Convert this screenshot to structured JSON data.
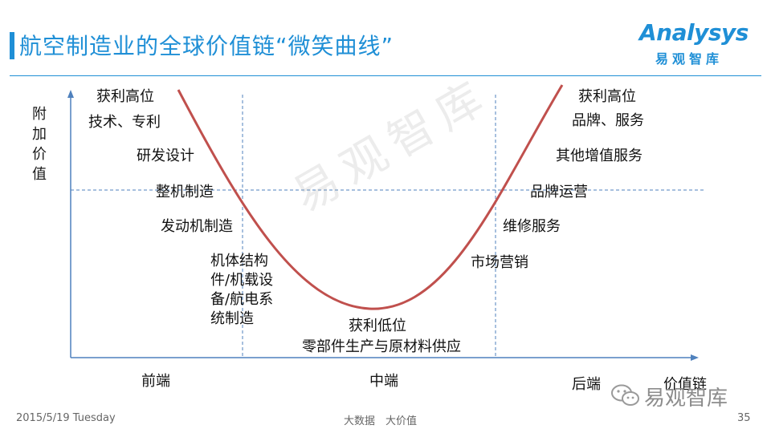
{
  "slide": {
    "title": "航空制造业的全球价值链“微笑曲线”",
    "logo_en": "Analysys",
    "logo_cn": "易观智库"
  },
  "diagram": {
    "y_axis_label": "附加价值",
    "x_axis_label": "价值链",
    "x_sections": [
      "前端",
      "中端",
      "后端"
    ],
    "left_labels": [
      "获利高位",
      "技术、专利",
      "研发设计",
      "整机制造",
      "发动机制造",
      "机体结构件/机载设备/航电系统制造"
    ],
    "bottom_labels": [
      "获利低位",
      "零部件生产与原材料供应"
    ],
    "right_labels": [
      "获利高位",
      "品牌、服务",
      "其他增值服务",
      "品牌运营",
      "维修服务",
      "市场营销"
    ],
    "curve_color": "#c0504d",
    "axis_color": "#4f81bd"
  },
  "watermark": "易观智库",
  "wechat_tag": "易观智库",
  "footer": {
    "date": "2015/5/19 Tuesday",
    "center": "大数据　大价值",
    "page": "35"
  }
}
